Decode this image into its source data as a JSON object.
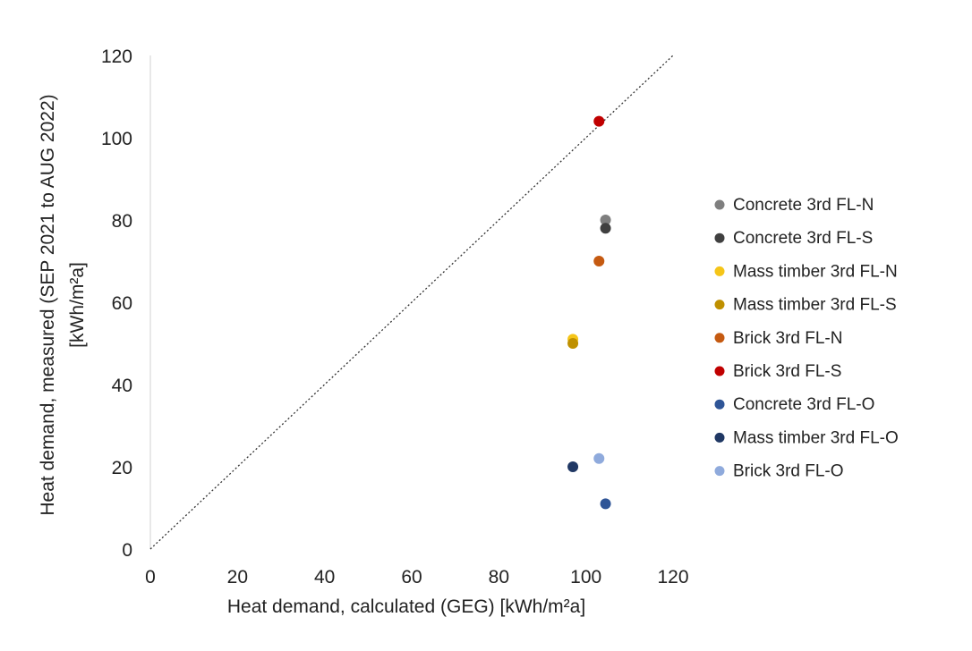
{
  "chart_data": {
    "type": "scatter",
    "xlabel": "Heat demand, calculated (GEG) [kWh/m²a]",
    "ylabel_line1": "Heat demand, measured (SEP 2021 to AUG 2022)",
    "ylabel_line2": "[kWh/m²a]",
    "xlim": [
      0,
      120
    ],
    "ylim": [
      0,
      120
    ],
    "xticks": [
      "0",
      "20",
      "40",
      "60",
      "80",
      "100",
      "120"
    ],
    "yticks": [
      "0",
      "20",
      "40",
      "60",
      "80",
      "100",
      "120"
    ],
    "grid": false,
    "legend_position": "right",
    "reference_line": {
      "style": "dotted",
      "from": [
        0,
        0
      ],
      "to": [
        120,
        120
      ]
    },
    "series": [
      {
        "name": "Concrete 3rd FL-N",
        "color": "#7f7f7f",
        "points": [
          [
            104.5,
            80
          ]
        ]
      },
      {
        "name": "Concrete 3rd FL-S",
        "color": "#404040",
        "points": [
          [
            104.5,
            78
          ]
        ]
      },
      {
        "name": "Mass timber 3rd FL-N",
        "color": "#f5c518",
        "points": [
          [
            97,
            51
          ]
        ]
      },
      {
        "name": "Mass timber 3rd FL-S",
        "color": "#bf9000",
        "points": [
          [
            97,
            50
          ]
        ]
      },
      {
        "name": "Brick 3rd FL-N",
        "color": "#c55a11",
        "points": [
          [
            103,
            70
          ]
        ]
      },
      {
        "name": "Brick 3rd FL-S",
        "color": "#c00000",
        "points": [
          [
            103,
            104
          ]
        ]
      },
      {
        "name": "Concrete 3rd FL-O",
        "color": "#2f5597",
        "points": [
          [
            104.5,
            11
          ]
        ]
      },
      {
        "name": "Mass timber 3rd FL-O",
        "color": "#203864",
        "points": [
          [
            97,
            20
          ]
        ]
      },
      {
        "name": "Brick 3rd FL-O",
        "color": "#8faadc",
        "points": [
          [
            103,
            22
          ]
        ]
      }
    ]
  }
}
